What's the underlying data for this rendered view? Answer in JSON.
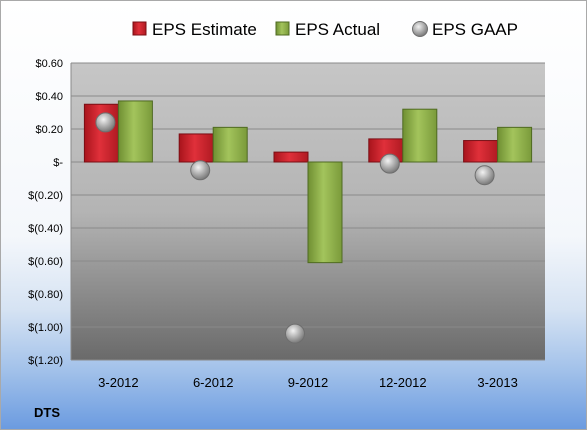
{
  "chart_data": {
    "type": "bar",
    "categories": [
      "3-2012",
      "6-2012",
      "9-2012",
      "12-2012",
      "3-2013"
    ],
    "series": [
      {
        "name": "EPS Estimate",
        "type": "bar",
        "color": "#d0202a",
        "values": [
          0.35,
          0.17,
          0.06,
          0.14,
          0.13
        ]
      },
      {
        "name": "EPS Actual",
        "type": "bar",
        "color": "#8fb04a",
        "values": [
          0.37,
          0.21,
          -0.61,
          0.32,
          0.21
        ]
      },
      {
        "name": "EPS GAAP",
        "type": "scatter",
        "color": "#a6a6a6",
        "values": [
          0.24,
          -0.05,
          -1.04,
          -0.01,
          -0.08
        ]
      }
    ],
    "yticks": [
      0.6,
      0.4,
      0.2,
      0,
      -0.2,
      -0.4,
      -0.6,
      -0.8,
      -1.0,
      -1.2
    ],
    "ytick_labels": [
      "$0.60",
      "$0.40",
      "$0.20",
      "$-",
      "$(0.20)",
      "$(0.40)",
      "$(0.60)",
      "$(0.80)",
      "$(1.00)",
      "$(1.20)"
    ],
    "ylim": [
      -1.2,
      0.6
    ],
    "grid": true,
    "legend": "top",
    "annotation": "DTS"
  }
}
